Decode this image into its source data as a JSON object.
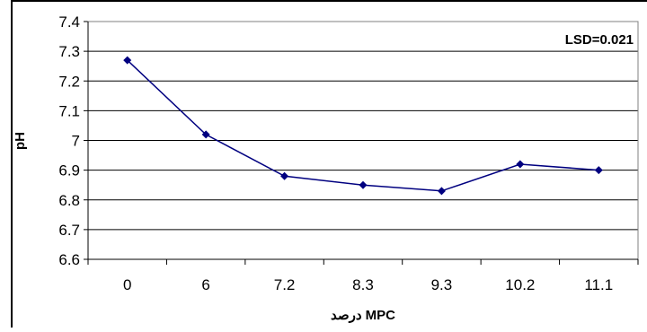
{
  "chart_data": {
    "type": "line",
    "categories": [
      "0",
      "6",
      "7.2",
      "8.3",
      "9.3",
      "10.2",
      "11.1"
    ],
    "series": [
      {
        "values": [
          7.27,
          7.02,
          6.88,
          6.85,
          6.83,
          6.92,
          6.9
        ]
      }
    ],
    "ylim": [
      6.6,
      7.4
    ],
    "ystep": 0.1,
    "yticks": [
      "6.6",
      "6.7",
      "6.8",
      "6.9",
      "7",
      "7.1",
      "7.2",
      "7.3",
      "7.4"
    ],
    "ylabel": "pH",
    "xlabel": "درصد MPC",
    "annotation": "LSD=0.021",
    "grid": true,
    "colors": {
      "line": "#000080",
      "marker": "#000080",
      "grid": "#000000"
    }
  }
}
